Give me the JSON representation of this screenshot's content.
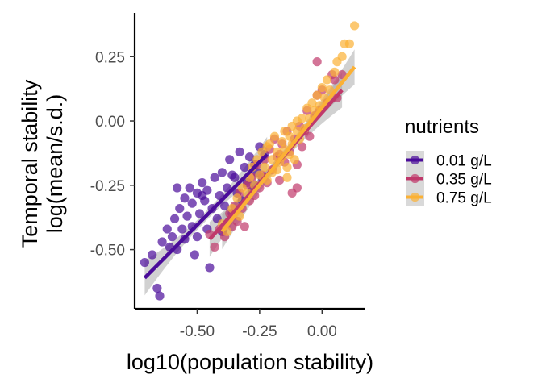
{
  "chart_data": {
    "type": "scatter",
    "xlabel": "log10(population stability)",
    "ylabel_lines": [
      "Temporal stability",
      "log(mean/s.d.)"
    ],
    "xticks": [
      -0.5,
      -0.25,
      0.0
    ],
    "xtick_labels": [
      "-0.50",
      "-0.25",
      "0.00"
    ],
    "yticks": [
      0.25,
      0.0,
      -0.25,
      -0.5
    ],
    "ytick_labels": [
      "0.25",
      "0.00",
      "-0.25",
      "-0.50"
    ],
    "xlim": [
      -0.75,
      0.17
    ],
    "ylim": [
      -0.73,
      0.42
    ],
    "grid": false,
    "legend": {
      "title": "nutrients",
      "position": "right"
    },
    "series": [
      {
        "name": "0.01 g/L",
        "color": "#4a0c9a",
        "fit": {
          "x": [
            -0.71,
            -0.22
          ],
          "y": [
            -0.61,
            -0.13
          ]
        },
        "points": [
          [
            -0.71,
            -0.55
          ],
          [
            -0.68,
            -0.52
          ],
          [
            -0.66,
            -0.65
          ],
          [
            -0.65,
            -0.68
          ],
          [
            -0.64,
            -0.47
          ],
          [
            -0.62,
            -0.42
          ],
          [
            -0.61,
            -0.49
          ],
          [
            -0.6,
            -0.45
          ],
          [
            -0.59,
            -0.38
          ],
          [
            -0.58,
            -0.5
          ],
          [
            -0.57,
            -0.34
          ],
          [
            -0.56,
            -0.42
          ],
          [
            -0.55,
            -0.3
          ],
          [
            -0.55,
            -0.46
          ],
          [
            -0.54,
            -0.37
          ],
          [
            -0.53,
            -0.26
          ],
          [
            -0.52,
            -0.41
          ],
          [
            -0.52,
            -0.32
          ],
          [
            -0.51,
            -0.52
          ],
          [
            -0.5,
            -0.28
          ],
          [
            -0.5,
            -0.45
          ],
          [
            -0.49,
            -0.36
          ],
          [
            -0.48,
            -0.24
          ],
          [
            -0.47,
            -0.31
          ],
          [
            -0.46,
            -0.42
          ],
          [
            -0.46,
            -0.27
          ],
          [
            -0.45,
            -0.57
          ],
          [
            -0.44,
            -0.34
          ],
          [
            -0.43,
            -0.22
          ],
          [
            -0.42,
            -0.38
          ],
          [
            -0.41,
            -0.29
          ],
          [
            -0.4,
            -0.43
          ],
          [
            -0.4,
            -0.2
          ],
          [
            -0.39,
            -0.33
          ],
          [
            -0.38,
            -0.26
          ],
          [
            -0.37,
            -0.15
          ],
          [
            -0.36,
            -0.36
          ],
          [
            -0.35,
            -0.22
          ],
          [
            -0.34,
            -0.28
          ],
          [
            -0.33,
            -0.12
          ],
          [
            -0.32,
            -0.31
          ],
          [
            -0.31,
            -0.18
          ],
          [
            -0.3,
            -0.24
          ],
          [
            -0.29,
            -0.14
          ],
          [
            -0.28,
            -0.27
          ],
          [
            -0.27,
            -0.17
          ],
          [
            -0.26,
            -0.2
          ],
          [
            -0.25,
            -0.1
          ],
          [
            -0.24,
            -0.22
          ],
          [
            -0.23,
            -0.13
          ],
          [
            -0.58,
            -0.26
          ],
          [
            -0.48,
            -0.29
          ],
          [
            -0.36,
            -0.21
          ],
          [
            -0.27,
            -0.25
          ]
        ]
      },
      {
        "name": "0.35 g/L",
        "color": "#c0396b",
        "fit": {
          "x": [
            -0.45,
            0.08
          ],
          "y": [
            -0.46,
            0.12
          ]
        },
        "points": [
          [
            -0.45,
            -0.44
          ],
          [
            -0.43,
            -0.49
          ],
          [
            -0.41,
            -0.42
          ],
          [
            -0.39,
            -0.45
          ],
          [
            -0.37,
            -0.36
          ],
          [
            -0.36,
            -0.41
          ],
          [
            -0.35,
            -0.33
          ],
          [
            -0.34,
            -0.39
          ],
          [
            -0.33,
            -0.28
          ],
          [
            -0.32,
            -0.34
          ],
          [
            -0.31,
            -0.41
          ],
          [
            -0.3,
            -0.25
          ],
          [
            -0.29,
            -0.31
          ],
          [
            -0.28,
            -0.22
          ],
          [
            -0.27,
            -0.29
          ],
          [
            -0.26,
            -0.17
          ],
          [
            -0.25,
            -0.26
          ],
          [
            -0.24,
            -0.21
          ],
          [
            -0.23,
            -0.15
          ],
          [
            -0.22,
            -0.24
          ],
          [
            -0.21,
            -0.11
          ],
          [
            -0.2,
            -0.19
          ],
          [
            -0.19,
            -0.07
          ],
          [
            -0.18,
            -0.14
          ],
          [
            -0.17,
            -0.23
          ],
          [
            -0.16,
            -0.09
          ],
          [
            -0.15,
            -0.16
          ],
          [
            -0.14,
            -0.04
          ],
          [
            -0.13,
            -0.12
          ],
          [
            -0.12,
            -0.28
          ],
          [
            -0.11,
            -0.07
          ],
          [
            -0.1,
            -0.17
          ],
          [
            -0.09,
            -0.02
          ],
          [
            -0.08,
            -0.1
          ],
          [
            -0.07,
            -0.04
          ],
          [
            -0.06,
            0.04
          ],
          [
            -0.05,
            -0.06
          ],
          [
            -0.03,
            0.02
          ],
          [
            -0.02,
            0.1
          ],
          [
            -0.01,
            0.04
          ],
          [
            0.0,
            0.12
          ],
          [
            0.02,
            0.07
          ],
          [
            0.04,
            0.18
          ],
          [
            0.05,
            0.16
          ],
          [
            0.06,
            0.09
          ],
          [
            -0.1,
            -0.26
          ],
          [
            0.08,
            0.18
          ],
          [
            -0.17,
            -0.13
          ],
          [
            -0.02,
            0.23
          ]
        ]
      },
      {
        "name": "0.75 g/L",
        "color": "#fbb135",
        "fit": {
          "x": [
            -0.4,
            0.13
          ],
          "y": [
            -0.43,
            0.21
          ]
        },
        "points": [
          [
            -0.4,
            -0.4
          ],
          [
            -0.38,
            -0.43
          ],
          [
            -0.36,
            -0.34
          ],
          [
            -0.34,
            -0.3
          ],
          [
            -0.33,
            -0.37
          ],
          [
            -0.32,
            -0.26
          ],
          [
            -0.3,
            -0.28
          ],
          [
            -0.29,
            -0.22
          ],
          [
            -0.28,
            -0.18
          ],
          [
            -0.27,
            -0.25
          ],
          [
            -0.26,
            -0.15
          ],
          [
            -0.25,
            -0.21
          ],
          [
            -0.24,
            -0.12
          ],
          [
            -0.23,
            -0.18
          ],
          [
            -0.22,
            -0.23
          ],
          [
            -0.21,
            -0.09
          ],
          [
            -0.2,
            -0.15
          ],
          [
            -0.2,
            -0.2
          ],
          [
            -0.19,
            -0.06
          ],
          [
            -0.18,
            -0.12
          ],
          [
            -0.18,
            -0.19
          ],
          [
            -0.17,
            -0.16
          ],
          [
            -0.16,
            -0.08
          ],
          [
            -0.16,
            -0.14
          ],
          [
            -0.15,
            -0.04
          ],
          [
            -0.15,
            -0.11
          ],
          [
            -0.14,
            -0.18
          ],
          [
            -0.13,
            -0.06
          ],
          [
            -0.13,
            -0.13
          ],
          [
            -0.12,
            -0.02
          ],
          [
            -0.12,
            -0.09
          ],
          [
            -0.11,
            -0.15
          ],
          [
            -0.1,
            -0.04
          ],
          [
            -0.1,
            0.0
          ],
          [
            -0.09,
            -0.07
          ],
          [
            -0.08,
            0.01
          ],
          [
            -0.07,
            -0.03
          ],
          [
            -0.06,
            0.05
          ],
          [
            -0.05,
            0.01
          ],
          [
            -0.04,
            0.07
          ],
          [
            -0.03,
            0.04
          ],
          [
            -0.02,
            0.1
          ],
          [
            -0.01,
            0.06
          ],
          [
            0.0,
            0.13
          ],
          [
            0.01,
            0.09
          ],
          [
            0.02,
            0.16
          ],
          [
            0.03,
            0.12
          ],
          [
            0.05,
            0.19
          ],
          [
            0.06,
            0.23
          ],
          [
            0.08,
            0.25
          ],
          [
            0.09,
            0.3
          ],
          [
            0.11,
            0.3
          ],
          [
            0.13,
            0.37
          ],
          [
            -0.14,
            -0.22
          ],
          [
            -0.22,
            -0.1
          ]
        ]
      }
    ]
  }
}
